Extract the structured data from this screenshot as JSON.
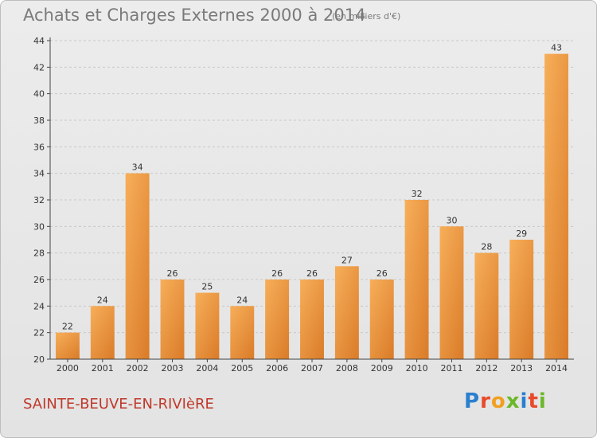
{
  "header": {
    "title": "Achats et Charges Externes 2000 à 2014",
    "subtitle": "(en milliers d'€)"
  },
  "footer": {
    "place": "SAINTE-BEUVE-EN-RIVIèRE",
    "logo": {
      "text": "Proxiti",
      "colors": [
        "#2a7fcf",
        "#e84a2a",
        "#f0a020",
        "#6bb82a",
        "#2a7fcf",
        "#e84a2a",
        "#6bb82a"
      ]
    }
  },
  "chart_data": {
    "type": "bar",
    "title": "Achats et Charges Externes 2000 à 2014",
    "subtitle": "(en milliers d'€)",
    "categories": [
      "2000",
      "2001",
      "2002",
      "2003",
      "2004",
      "2005",
      "2006",
      "2007",
      "2008",
      "2009",
      "2010",
      "2011",
      "2012",
      "2013",
      "2014"
    ],
    "values": [
      22,
      24,
      34,
      26,
      25,
      24,
      26,
      26,
      27,
      26,
      32,
      30,
      28,
      29,
      43
    ],
    "data_labels": [
      "22",
      "24",
      "34",
      "26",
      "25",
      "24",
      "26",
      "26",
      "27",
      "26",
      "32",
      "30",
      "28",
      "29",
      "43"
    ],
    "ylim": [
      20,
      44
    ],
    "yticks": [
      20,
      22,
      24,
      26,
      28,
      30,
      32,
      34,
      36,
      38,
      40,
      42,
      44
    ],
    "xlabel": "",
    "ylabel": "",
    "grid": "horizontal dashed",
    "legend": "none",
    "colors": {
      "bar_light": "#f7a84d",
      "bar_dark": "#d6731f",
      "grid": "#c8c8c8",
      "axis": "#444444"
    }
  }
}
